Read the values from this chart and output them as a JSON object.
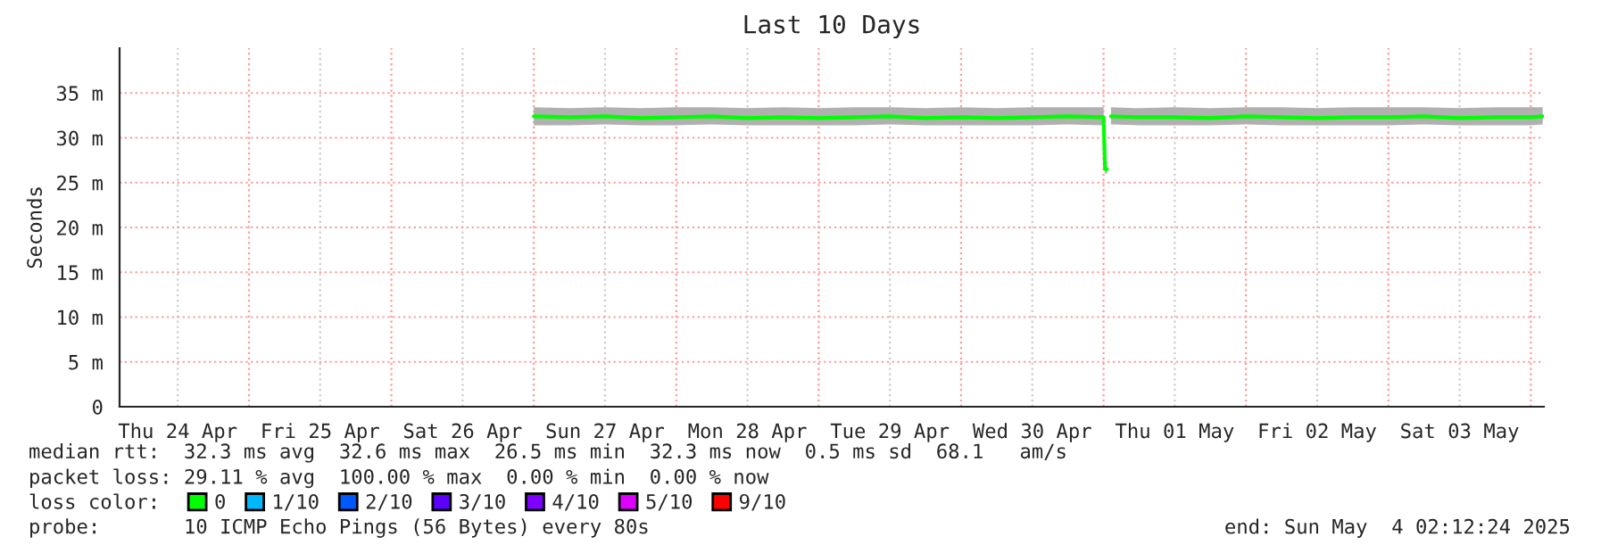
{
  "chart_data": {
    "type": "line",
    "title": "Last 10 Days",
    "ylabel": "Seconds",
    "xlim": [
      "2025-04-24T02:12",
      "2025-05-04T02:12"
    ],
    "xticks": [
      {
        "value": "2025-04-24T12:00",
        "label": "Thu 24 Apr"
      },
      {
        "value": "2025-04-25T12:00",
        "label": "Fri 25 Apr"
      },
      {
        "value": "2025-04-26T12:00",
        "label": "Sat 26 Apr"
      },
      {
        "value": "2025-04-27T12:00",
        "label": "Sun 27 Apr"
      },
      {
        "value": "2025-04-28T12:00",
        "label": "Mon 28 Apr"
      },
      {
        "value": "2025-04-29T12:00",
        "label": "Tue 29 Apr"
      },
      {
        "value": "2025-04-30T12:00",
        "label": "Wed 30 Apr"
      },
      {
        "value": "2025-05-01T12:00",
        "label": "Thu 01 May"
      },
      {
        "value": "2025-05-02T12:00",
        "label": "Fri 02 May"
      },
      {
        "value": "2025-05-03T12:00",
        "label": "Sat 03 May"
      },
      {
        "value": "2025-04-25T00:00",
        "label": null
      },
      {
        "value": "2025-04-26T00:00",
        "label": null
      },
      {
        "value": "2025-04-27T00:00",
        "label": null
      },
      {
        "value": "2025-04-28T00:00",
        "label": null
      },
      {
        "value": "2025-04-29T00:00",
        "label": null
      },
      {
        "value": "2025-04-30T00:00",
        "label": null
      },
      {
        "value": "2025-05-01T00:00",
        "label": null
      },
      {
        "value": "2025-05-02T00:00",
        "label": null
      },
      {
        "value": "2025-05-03T00:00",
        "label": null
      },
      {
        "value": "2025-05-04T00:00",
        "label": null
      }
    ],
    "ylim": [
      0,
      40
    ],
    "yticks": [
      0,
      {
        "value": 5,
        "label": "5 m"
      },
      {
        "value": 10,
        "label": "10 m"
      },
      {
        "value": 15,
        "label": "15 m"
      },
      {
        "value": 20,
        "label": "20 m"
      },
      {
        "value": 25,
        "label": "25 m"
      },
      {
        "value": 30,
        "label": "30 m"
      },
      {
        "value": 35,
        "label": "35 m"
      }
    ],
    "grid": true,
    "legend": "bottom",
    "legend_title": "loss color:",
    "x": [
      "2025-04-27T00:00",
      "2025-04-27T06:00",
      "2025-04-27T12:00",
      "2025-04-27T18:00",
      "2025-04-28T00:00",
      "2025-04-28T06:00",
      "2025-04-28T12:00",
      "2025-04-28T18:00",
      "2025-04-29T00:00",
      "2025-04-29T06:00",
      "2025-04-29T12:00",
      "2025-04-29T18:00",
      "2025-04-30T00:00",
      "2025-04-30T06:00",
      "2025-04-30T12:00",
      "2025-04-30T18:00",
      "2025-05-01T00:00",
      "2025-05-01T00:15",
      "2025-05-01T00:35",
      "2025-05-01T00:45",
      "2025-05-01T01:15",
      "2025-05-01T06:00",
      "2025-05-01T12:00",
      "2025-05-01T18:00",
      "2025-05-02T00:00",
      "2025-05-02T06:00",
      "2025-05-02T12:00",
      "2025-05-02T18:00",
      "2025-05-03T00:00",
      "2025-05-03T06:00",
      "2025-05-03T12:00",
      "2025-05-03T18:00",
      "2025-05-04T00:00",
      "2025-05-04T02:00"
    ],
    "series": [
      {
        "name": "0",
        "color": "#00ff00",
        "values": [
          32.4,
          32.3,
          32.4,
          32.2,
          32.3,
          32.4,
          32.2,
          32.3,
          32.2,
          32.3,
          32.4,
          32.2,
          32.3,
          32.2,
          32.3,
          32.4,
          32.3,
          26.5,
          26.5,
          null,
          32.4,
          32.3,
          32.3,
          32.2,
          32.4,
          32.3,
          32.2,
          32.3,
          32.3,
          32.4,
          32.2,
          32.3,
          32.3,
          32.4
        ],
        "lower": [
          31.4,
          31.4,
          31.5,
          31.4,
          31.4,
          31.5,
          31.4,
          31.4,
          31.4,
          31.4,
          31.5,
          31.4,
          31.4,
          31.4,
          31.4,
          31.5,
          31.4,
          26,
          26,
          null,
          31.5,
          31.4,
          31.4,
          31.4,
          31.5,
          31.4,
          31.4,
          31.4,
          31.4,
          31.5,
          31.4,
          31.4,
          31.4,
          31.5
        ],
        "upper": [
          33.4,
          33.3,
          33.4,
          33.3,
          33.4,
          33.4,
          33.3,
          33.4,
          33.3,
          33.4,
          33.4,
          33.3,
          33.4,
          33.3,
          33.4,
          33.4,
          33.4,
          27,
          27,
          null,
          33.4,
          33.3,
          33.4,
          33.3,
          33.4,
          33.4,
          33.3,
          33.4,
          33.4,
          33.4,
          33.3,
          33.4,
          33.4,
          33.4
        ]
      },
      {
        "name": "1/10",
        "color": "#00b8ff",
        "values": [
          null,
          null,
          null,
          null,
          null,
          null,
          null,
          null,
          null,
          null,
          null,
          null,
          null,
          null,
          null,
          null,
          null,
          null,
          null,
          null,
          null,
          null,
          null,
          null,
          null,
          null,
          null,
          null,
          null,
          null,
          null,
          null,
          null,
          null
        ]
      },
      {
        "name": "2/10",
        "color": "#0059ff",
        "values": [
          null,
          null,
          null,
          null,
          null,
          null,
          null,
          null,
          null,
          null,
          null,
          null,
          null,
          null,
          null,
          null,
          null,
          null,
          null,
          null,
          null,
          null,
          null,
          null,
          null,
          null,
          null,
          null,
          null,
          null,
          null,
          null,
          null,
          null
        ]
      },
      {
        "name": "3/10",
        "color": "#5e00ff",
        "values": [
          null,
          null,
          null,
          null,
          null,
          null,
          null,
          null,
          null,
          null,
          null,
          null,
          null,
          null,
          null,
          null,
          null,
          null,
          null,
          null,
          null,
          null,
          null,
          null,
          null,
          null,
          null,
          null,
          null,
          null,
          null,
          null,
          null,
          null
        ]
      },
      {
        "name": "4/10",
        "color": "#7e00ff",
        "values": [
          null,
          null,
          null,
          null,
          null,
          null,
          null,
          null,
          null,
          null,
          null,
          null,
          null,
          null,
          null,
          null,
          null,
          null,
          null,
          null,
          null,
          null,
          null,
          null,
          null,
          null,
          null,
          null,
          null,
          null,
          null,
          null,
          null,
          null
        ]
      },
      {
        "name": "5/10",
        "color": "#dd00ff",
        "values": [
          null,
          null,
          null,
          null,
          null,
          null,
          null,
          null,
          null,
          null,
          null,
          null,
          null,
          null,
          null,
          null,
          null,
          null,
          null,
          null,
          null,
          null,
          null,
          null,
          null,
          null,
          null,
          null,
          null,
          null,
          null,
          null,
          null,
          null
        ]
      },
      {
        "name": "9/10",
        "color": "#ff0000",
        "values": [
          null,
          null,
          null,
          null,
          null,
          null,
          null,
          null,
          null,
          null,
          null,
          null,
          null,
          null,
          null,
          null,
          null,
          null,
          null,
          null,
          null,
          null,
          null,
          null,
          null,
          null,
          null,
          null,
          null,
          null,
          null,
          null,
          null,
          null
        ]
      }
    ],
    "annotations": [
      "median rtt:  32.3 ms avg  32.6 ms max  26.5 ms min  32.3 ms now  0.5 ms sd  68.1   am/s",
      "packet loss: 29.11 % avg  100.00 % max  0.00 % min  0.00 % now",
      "probe:       10 ICMP Echo Pings (56 Bytes) every 80s",
      "end: Sun May  4 02:12:24 2025"
    ]
  }
}
